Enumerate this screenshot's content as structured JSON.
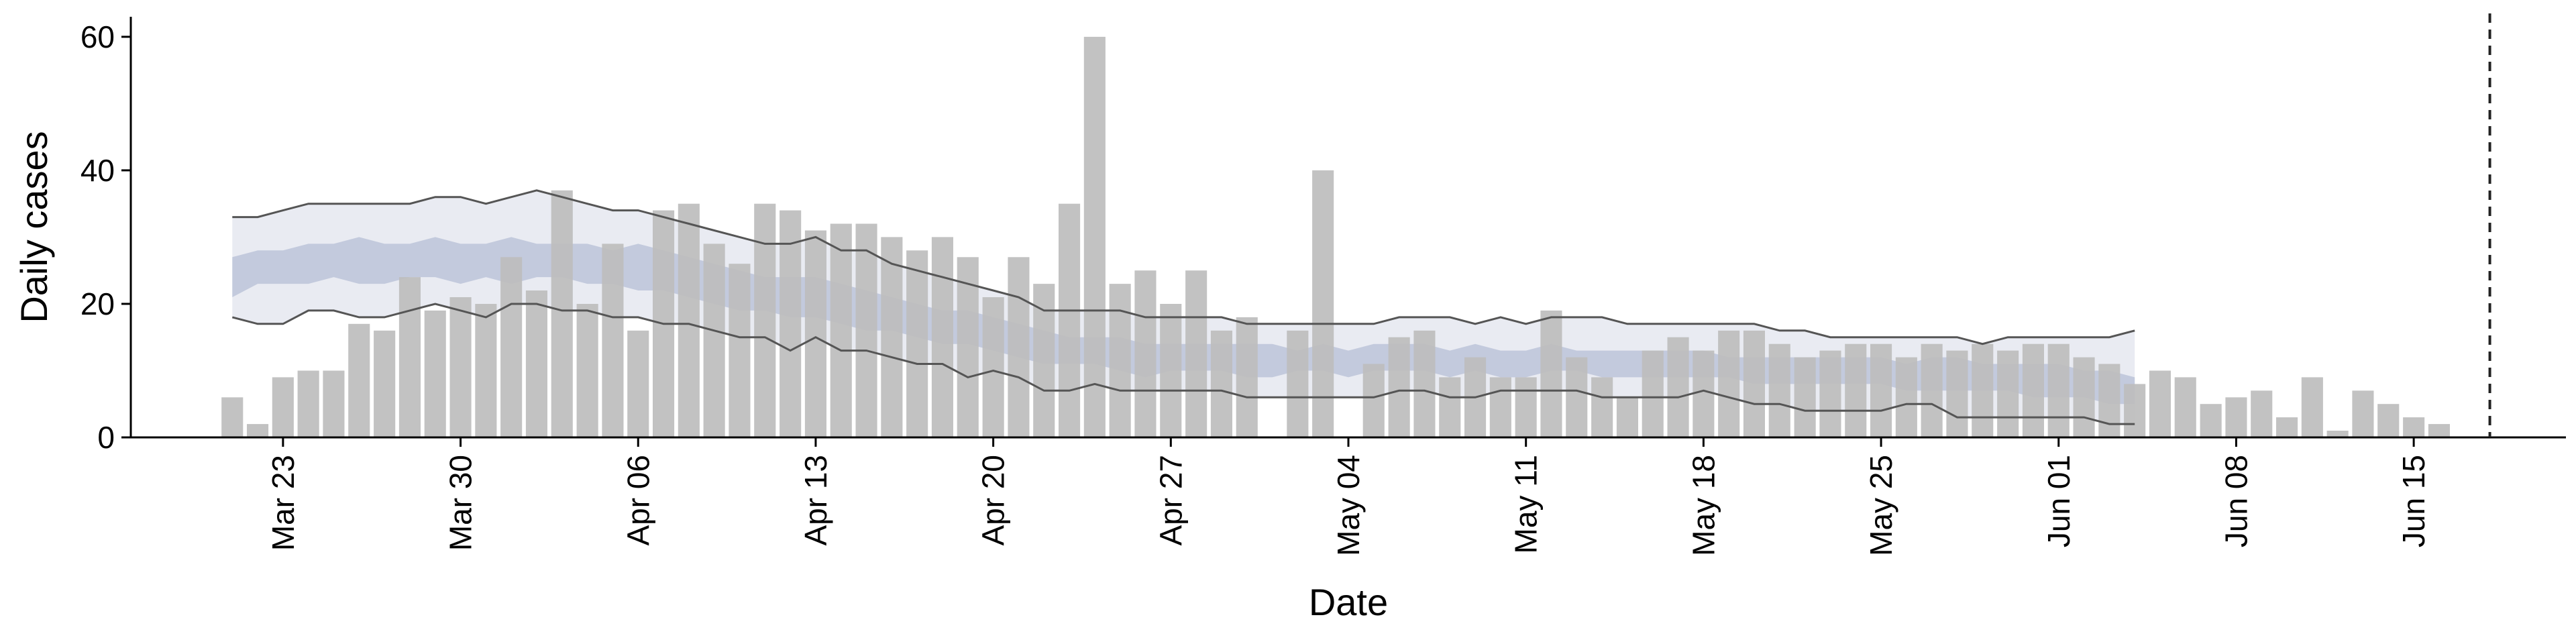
{
  "chart_data": {
    "type": "bar",
    "xlabel": "Date",
    "ylabel": "Daily cases",
    "ylim": [
      0,
      63
    ],
    "xlim": [
      "2020-03-17",
      "2020-06-21"
    ],
    "yticks": [
      0,
      20,
      40,
      60
    ],
    "xticks": [
      {
        "date": "2020-03-23",
        "label": "Mar 23"
      },
      {
        "date": "2020-03-30",
        "label": "Mar 30"
      },
      {
        "date": "2020-04-06",
        "label": "Apr 06"
      },
      {
        "date": "2020-04-13",
        "label": "Apr 13"
      },
      {
        "date": "2020-04-20",
        "label": "Apr 20"
      },
      {
        "date": "2020-04-27",
        "label": "Apr 27"
      },
      {
        "date": "2020-05-04",
        "label": "May 04"
      },
      {
        "date": "2020-05-11",
        "label": "May 11"
      },
      {
        "date": "2020-05-18",
        "label": "May 18"
      },
      {
        "date": "2020-05-25",
        "label": "May 25"
      },
      {
        "date": "2020-06-01",
        "label": "Jun 01"
      },
      {
        "date": "2020-06-08",
        "label": "Jun 08"
      },
      {
        "date": "2020-06-15",
        "label": "Jun 15"
      }
    ],
    "bars": {
      "start_date": "2020-03-21",
      "values": [
        6,
        2,
        9,
        10,
        10,
        17,
        16,
        24,
        19,
        21,
        20,
        27,
        22,
        37,
        20,
        29,
        16,
        34,
        35,
        29,
        26,
        35,
        34,
        31,
        32,
        32,
        30,
        28,
        30,
        27,
        21,
        27,
        23,
        35,
        60,
        23,
        25,
        20,
        25,
        16,
        18,
        0,
        16,
        40,
        0,
        11,
        15,
        16,
        9,
        12,
        9,
        9,
        19,
        12,
        9,
        6,
        13,
        15,
        13,
        16,
        16,
        14,
        12,
        13,
        14,
        14,
        12,
        14,
        13,
        14,
        13,
        14,
        14,
        12,
        11,
        8,
        10,
        9,
        5,
        6,
        7,
        3,
        9,
        1,
        7,
        5,
        3,
        2
      ]
    },
    "estimate_band": {
      "start_date": "2020-03-21",
      "outer_upper": [
        33,
        33,
        34,
        35,
        35,
        35,
        35,
        35,
        36,
        36,
        35,
        36,
        37,
        36,
        35,
        34,
        34,
        33,
        32,
        31,
        30,
        29,
        29,
        30,
        28,
        28,
        26,
        25,
        24,
        23,
        22,
        21,
        19,
        19,
        19,
        19,
        18,
        18,
        18,
        18,
        17,
        17,
        17,
        17,
        17,
        17,
        18,
        18,
        18,
        17,
        18,
        17,
        18,
        18,
        18,
        17,
        17,
        17,
        17,
        17,
        17,
        16,
        16,
        15,
        15,
        15,
        15,
        15,
        15,
        14,
        15,
        15,
        15,
        15,
        15,
        16
      ],
      "inner_upper": [
        27,
        28,
        28,
        29,
        29,
        30,
        29,
        29,
        30,
        29,
        29,
        30,
        29,
        29,
        29,
        28,
        29,
        28,
        27,
        26,
        25,
        24,
        24,
        24,
        23,
        22,
        21,
        20,
        19,
        19,
        18,
        17,
        16,
        15,
        15,
        15,
        14,
        14,
        14,
        14,
        14,
        14,
        13,
        14,
        13,
        14,
        14,
        14,
        13,
        14,
        13,
        13,
        14,
        13,
        13,
        13,
        13,
        13,
        13,
        12,
        12,
        12,
        12,
        12,
        12,
        12,
        11,
        12,
        12,
        11,
        11,
        11,
        11,
        10,
        10,
        9
      ],
      "inner_lower": [
        21,
        23,
        23,
        23,
        24,
        23,
        23,
        24,
        24,
        23,
        24,
        23,
        24,
        24,
        23,
        23,
        22,
        22,
        21,
        20,
        19,
        19,
        18,
        18,
        17,
        16,
        16,
        15,
        14,
        14,
        13,
        12,
        11,
        11,
        11,
        10,
        9,
        10,
        10,
        10,
        9,
        9,
        10,
        10,
        9,
        10,
        10,
        10,
        9,
        10,
        9,
        9,
        10,
        10,
        9,
        9,
        9,
        9,
        9,
        9,
        8,
        8,
        8,
        8,
        8,
        8,
        7,
        7,
        7,
        7,
        7,
        6,
        6,
        6,
        5,
        5
      ],
      "outer_lower": [
        18,
        17,
        17,
        19,
        19,
        18,
        18,
        19,
        20,
        19,
        18,
        20,
        20,
        19,
        19,
        18,
        18,
        17,
        17,
        16,
        15,
        15,
        13,
        15,
        13,
        13,
        12,
        11,
        11,
        9,
        10,
        9,
        7,
        7,
        8,
        7,
        7,
        7,
        7,
        7,
        6,
        6,
        6,
        6,
        6,
        6,
        7,
        7,
        6,
        6,
        7,
        7,
        7,
        7,
        6,
        6,
        6,
        6,
        7,
        6,
        5,
        5,
        4,
        4,
        4,
        4,
        5,
        5,
        3,
        3,
        3,
        3,
        3,
        3,
        2,
        2
      ]
    },
    "vline_date": "2020-06-18",
    "colors": {
      "bar": "#bdbdbd",
      "outer_band": "#e9ebf2",
      "inner_band": "#c3cadd",
      "band_line": "#555555",
      "axis": "#000000"
    },
    "grid": false,
    "legend": "none"
  }
}
